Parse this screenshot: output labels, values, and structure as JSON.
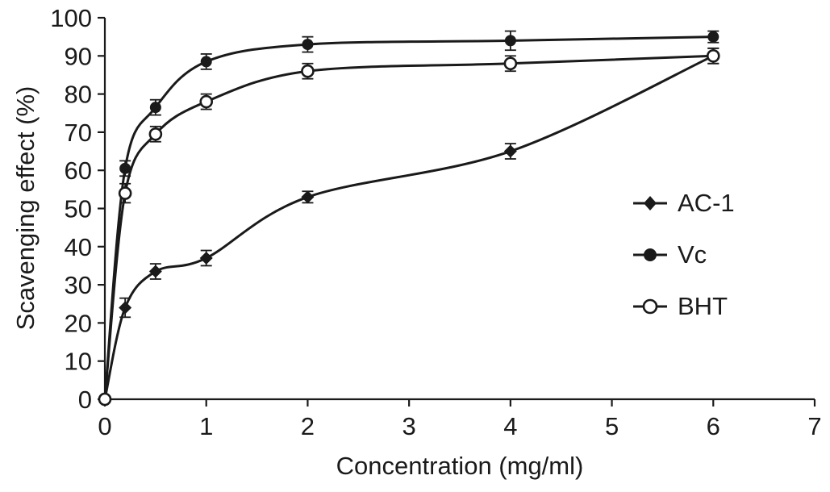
{
  "chart_data": {
    "type": "line",
    "title": "",
    "xlabel": "Concentration (mg/ml)",
    "ylabel": "Scavenging effect (%)",
    "xlim": [
      0,
      7
    ],
    "ylim": [
      0,
      100
    ],
    "x_ticks": [
      0,
      1,
      2,
      3,
      4,
      5,
      6,
      7
    ],
    "y_ticks": [
      0,
      10,
      20,
      30,
      40,
      50,
      60,
      70,
      80,
      90,
      100
    ],
    "grid": false,
    "legend_position": "right-middle",
    "line_color": "#1a1a1a",
    "x": [
      0,
      0.2,
      0.5,
      1,
      2,
      4,
      6
    ],
    "series": [
      {
        "name": "AC-1",
        "marker": "diamond-filled",
        "values": [
          0,
          24,
          33.5,
          37,
          53,
          65,
          90
        ],
        "errors": [
          0,
          2.5,
          2,
          2,
          1.5,
          2,
          2
        ]
      },
      {
        "name": "Vc",
        "marker": "circle-filled",
        "values": [
          0,
          60.5,
          76.5,
          88.5,
          93,
          94,
          95
        ],
        "errors": [
          0,
          2,
          2,
          2,
          2,
          2.5,
          1.5
        ]
      },
      {
        "name": "BHT",
        "marker": "circle-open",
        "values": [
          0,
          54,
          69.5,
          78,
          86,
          88,
          90
        ],
        "errors": [
          0,
          2.5,
          2,
          2,
          2,
          2,
          2
        ]
      }
    ]
  }
}
